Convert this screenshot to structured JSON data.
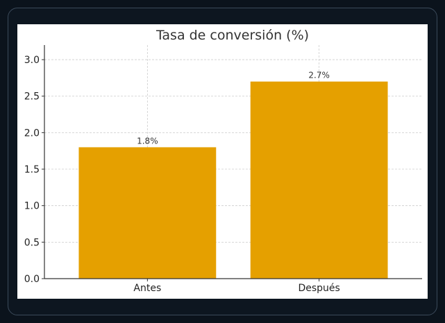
{
  "chart_data": {
    "type": "bar",
    "title": "Tasa de conversión (%)",
    "xlabel": "",
    "ylabel": "",
    "categories": [
      "Antes",
      "Después"
    ],
    "values": [
      1.8,
      2.7
    ],
    "data_labels": [
      "1.8%",
      "2.7%"
    ],
    "ylim": [
      0,
      3.2
    ],
    "yticks": [
      0.0,
      0.5,
      1.0,
      1.5,
      2.0,
      2.5,
      3.0
    ],
    "ytick_labels": [
      "0.0",
      "0.5",
      "1.0",
      "1.5",
      "2.0",
      "2.5",
      "3.0"
    ],
    "grid": true,
    "bar_color": "#e5a000",
    "grid_color": "#cccccc"
  }
}
